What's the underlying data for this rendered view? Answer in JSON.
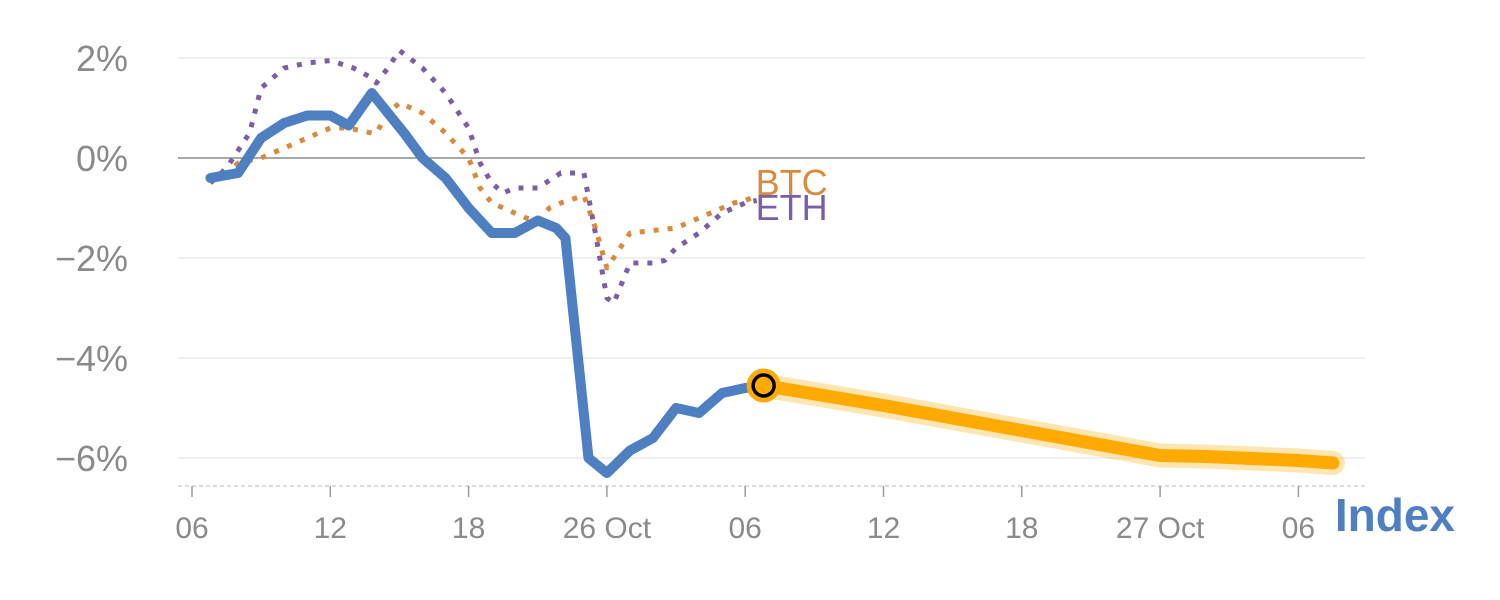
{
  "chart_data": {
    "type": "line",
    "x_unit": "hours",
    "x_ticks": [
      {
        "x": 0,
        "label": "06"
      },
      {
        "x": 6,
        "label": "12"
      },
      {
        "x": 12,
        "label": "18"
      },
      {
        "x": 18,
        "label": "26 Oct"
      },
      {
        "x": 24,
        "label": "06"
      },
      {
        "x": 30,
        "label": "12"
      },
      {
        "x": 36,
        "label": "18"
      },
      {
        "x": 42,
        "label": "27 Oct"
      },
      {
        "x": 48,
        "label": "06"
      }
    ],
    "y_ticks": [
      {
        "y": 2,
        "label": "2%"
      },
      {
        "y": 0,
        "label": "0%"
      },
      {
        "y": -2,
        "label": "−2%"
      },
      {
        "y": -4,
        "label": "−4%"
      },
      {
        "y": -6,
        "label": "−6%"
      }
    ],
    "xlim": [
      0,
      50
    ],
    "ylim": [
      -6.6,
      2.3
    ],
    "grid": true,
    "series": [
      {
        "name": "ETH",
        "color": "#7b5ea7",
        "style": "dotted",
        "points": [
          [
            0.8,
            -0.5
          ],
          [
            1.5,
            -0.2
          ],
          [
            2.5,
            0.5
          ],
          [
            3,
            1.4
          ],
          [
            4,
            1.8
          ],
          [
            5,
            1.9
          ],
          [
            6,
            1.95
          ],
          [
            7,
            1.8
          ],
          [
            7.8,
            1.6
          ],
          [
            8,
            1.5
          ],
          [
            8.5,
            1.8
          ],
          [
            9,
            2.15
          ],
          [
            10,
            1.8
          ],
          [
            11,
            1.3
          ],
          [
            12,
            0.6
          ],
          [
            12.5,
            -0.1
          ],
          [
            13,
            -0.5
          ],
          [
            13.5,
            -0.7
          ],
          [
            14,
            -0.6
          ],
          [
            15,
            -0.6
          ],
          [
            15.5,
            -0.45
          ],
          [
            16,
            -0.3
          ],
          [
            16.5,
            -0.3
          ],
          [
            17,
            -0.3
          ],
          [
            17.5,
            -1.5
          ],
          [
            18,
            -2.8
          ],
          [
            18.3,
            -2.9
          ],
          [
            19,
            -2.1
          ],
          [
            20,
            -2.1
          ],
          [
            20.5,
            -2.05
          ],
          [
            21,
            -1.8
          ],
          [
            22,
            -1.5
          ],
          [
            23,
            -1.1
          ],
          [
            24,
            -0.9
          ],
          [
            24.5,
            -0.85
          ]
        ]
      },
      {
        "name": "BTC",
        "color": "#d98a3d",
        "style": "dotted",
        "points": [
          [
            0.8,
            -0.4
          ],
          [
            1.5,
            -0.3
          ],
          [
            2,
            -0.1
          ],
          [
            3,
            0
          ],
          [
            4,
            0.2
          ],
          [
            5,
            0.4
          ],
          [
            6,
            0.6
          ],
          [
            6.8,
            0.6
          ],
          [
            7.8,
            0.5
          ],
          [
            8,
            0.5
          ],
          [
            8.5,
            0.9
          ],
          [
            9,
            1.1
          ],
          [
            10,
            0.9
          ],
          [
            11,
            0.5
          ],
          [
            12,
            0
          ],
          [
            12.5,
            -0.6
          ],
          [
            13,
            -0.9
          ],
          [
            14,
            -1.1
          ],
          [
            14.5,
            -1.2
          ],
          [
            15,
            -1.25
          ],
          [
            15.5,
            -1.0
          ],
          [
            16,
            -0.9
          ],
          [
            17,
            -0.75
          ],
          [
            17.5,
            -1.4
          ],
          [
            18,
            -2.2
          ],
          [
            19,
            -1.5
          ],
          [
            20,
            -1.45
          ],
          [
            21,
            -1.4
          ],
          [
            22,
            -1.2
          ],
          [
            23,
            -1.0
          ],
          [
            23.5,
            -0.9
          ],
          [
            24,
            -0.85
          ],
          [
            24.5,
            -0.75
          ]
        ]
      },
      {
        "name": "Index",
        "color": "#4e7fc0",
        "style": "solid",
        "points": [
          [
            0.8,
            -0.4
          ],
          [
            2,
            -0.3
          ],
          [
            3,
            0.4
          ],
          [
            4,
            0.7
          ],
          [
            5,
            0.85
          ],
          [
            6,
            0.85
          ],
          [
            6.8,
            0.65
          ],
          [
            7.8,
            1.3
          ],
          [
            8.5,
            0.9
          ],
          [
            9.2,
            0.5
          ],
          [
            10,
            0
          ],
          [
            11,
            -0.4
          ],
          [
            12,
            -1.0
          ],
          [
            13,
            -1.5
          ],
          [
            14,
            -1.5
          ],
          [
            15,
            -1.25
          ],
          [
            15.8,
            -1.4
          ],
          [
            16.2,
            -1.6
          ],
          [
            17.2,
            -6.0
          ],
          [
            18,
            -6.3
          ],
          [
            19,
            -5.85
          ],
          [
            20,
            -5.6
          ],
          [
            21,
            -5.0
          ],
          [
            22,
            -5.1
          ],
          [
            23,
            -4.7
          ],
          [
            24,
            -4.6
          ],
          [
            24.8,
            -4.55
          ]
        ]
      },
      {
        "name": "",
        "color": "#ffaa00",
        "style": "projection",
        "points": [
          [
            24.8,
            -4.55
          ],
          [
            30,
            -4.95
          ],
          [
            36,
            -5.45
          ],
          [
            42,
            -5.95
          ],
          [
            44,
            -5.97
          ],
          [
            48,
            -6.05
          ],
          [
            49.5,
            -6.1
          ]
        ]
      }
    ],
    "series_labels": [
      {
        "name": "BTC",
        "text": "BTC",
        "color": "#d98a3d",
        "at": [
          24.8,
          -0.5
        ]
      },
      {
        "name": "ETH",
        "text": "ETH",
        "color": "#7b5ea7",
        "at": [
          24.8,
          -1.0
        ]
      }
    ],
    "index_label": {
      "text": "Index",
      "color": "#4e7fc0"
    },
    "marker": {
      "x": 24.8,
      "y": -4.55,
      "fill": "#ffaa00"
    }
  }
}
